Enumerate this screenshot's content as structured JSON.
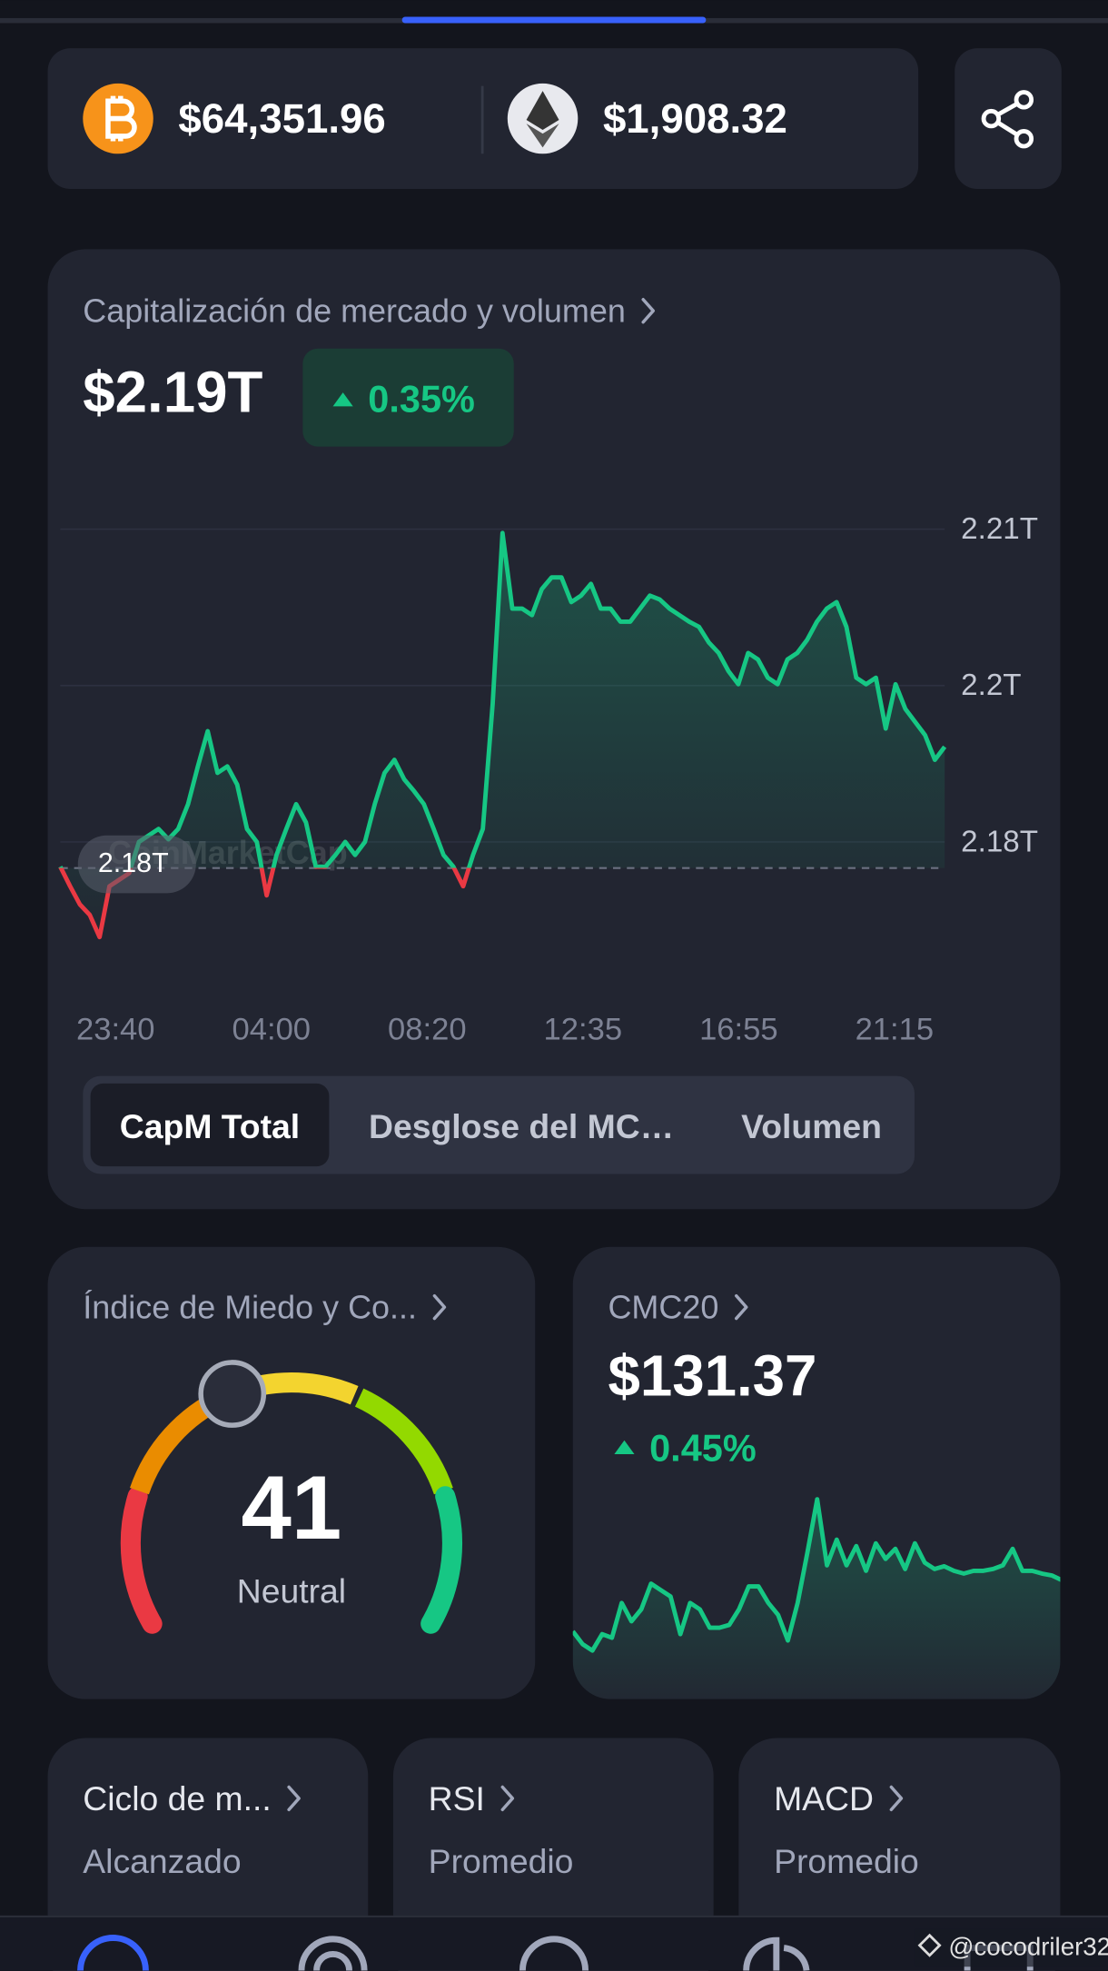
{
  "ticker": {
    "btc_price": "$64,351.96",
    "eth_price": "$1,908.32"
  },
  "market_cap": {
    "title": "Capitalización de mercado y volumen",
    "value": "$2.19T",
    "change": "0.35%",
    "watermark": "CoinMarketCap",
    "tabs": [
      "CapM Total",
      "Desglose del MC…",
      "Volumen"
    ]
  },
  "fear_greed": {
    "title": "Índice de Miedo y Co...",
    "value": 41,
    "label": "Neutral",
    "range": [
      0,
      100
    ]
  },
  "cmc20": {
    "title": "CMC20",
    "value": "$131.37",
    "change": "0.45%"
  },
  "indicators": [
    {
      "title": "Ciclo de m...",
      "subtitle": "Alcanzado"
    },
    {
      "title": "RSI",
      "subtitle": "Promedio"
    },
    {
      "title": "MACD",
      "subtitle": "Promedio"
    }
  ],
  "footer": {
    "watermark": "@cocodriler32"
  },
  "chart_data": [
    {
      "type": "line",
      "series": [
        {
          "color": "#16c784",
          "values": [
            2.1821,
            2.1806,
            2.1792,
            2.1784,
            2.1767,
            2.1806,
            2.1811,
            2.1816,
            2.184,
            2.1845,
            2.185,
            2.1842,
            2.185,
            2.1869,
            2.1898,
            2.1925,
            2.1893,
            2.1898,
            2.1884,
            2.185,
            2.184,
            2.1799,
            2.183,
            2.185,
            2.1869,
            2.1855,
            2.1821,
            2.1821,
            2.183,
            2.184,
            2.183,
            2.184,
            2.1869,
            2.1893,
            2.1903,
            2.1888,
            2.1879,
            2.1869,
            2.185,
            2.183,
            2.1821,
            2.1806,
            2.183,
            2.185,
            2.1946,
            2.2077,
            2.2019,
            2.2019,
            2.2014,
            2.2034,
            2.2043,
            2.2043,
            2.2024,
            2.2029,
            2.2038,
            2.2019,
            2.2019,
            2.2009,
            2.2009,
            2.2019,
            2.2029,
            2.2026,
            2.2019,
            2.2014,
            2.2009,
            2.2005,
            2.1993,
            2.1985,
            2.1971,
            2.1961,
            2.1985,
            2.198,
            2.1966,
            2.1961,
            2.198,
            2.1985,
            2.1995,
            2.2009,
            2.2019,
            2.2024,
            2.2005,
            2.1966,
            2.1961,
            2.1966,
            2.1927,
            2.1961,
            2.1942,
            2.1932,
            2.1922,
            2.1903,
            2.1913
          ]
        }
      ],
      "below_color": "#ea3943",
      "baseline": {
        "value": 2.182,
        "label": "2.18T"
      },
      "ylim": [
        2.1753,
        2.21
      ],
      "yticks": [
        {
          "value": 2.208,
          "label": "2.21T"
        },
        {
          "value": 2.196,
          "label": "2.2T"
        },
        {
          "value": 2.184,
          "label": "2.18T"
        }
      ],
      "grid": true,
      "x_labels": [
        "23:40",
        "04:00",
        "08:20",
        "12:35",
        "16:55",
        "21:15"
      ]
    },
    {
      "type": "line",
      "color": "#16c784",
      "values": [
        130.81,
        130.67,
        130.6,
        130.78,
        130.74,
        131.12,
        130.92,
        131.05,
        131.33,
        131.26,
        131.19,
        130.78,
        131.12,
        131.05,
        130.85,
        130.85,
        130.88,
        131.05,
        131.3,
        131.3,
        131.12,
        130.99,
        130.71,
        131.12,
        131.67,
        132.25,
        131.53,
        131.81,
        131.53,
        131.74,
        131.47,
        131.77,
        131.6,
        131.71,
        131.49,
        131.77,
        131.56,
        131.49,
        131.52,
        131.47,
        131.44,
        131.47,
        131.47,
        131.49,
        131.53,
        131.71,
        131.47,
        131.47,
        131.44,
        131.42,
        131.37
      ],
      "ylim": [
        130.4,
        132.4
      ]
    }
  ]
}
